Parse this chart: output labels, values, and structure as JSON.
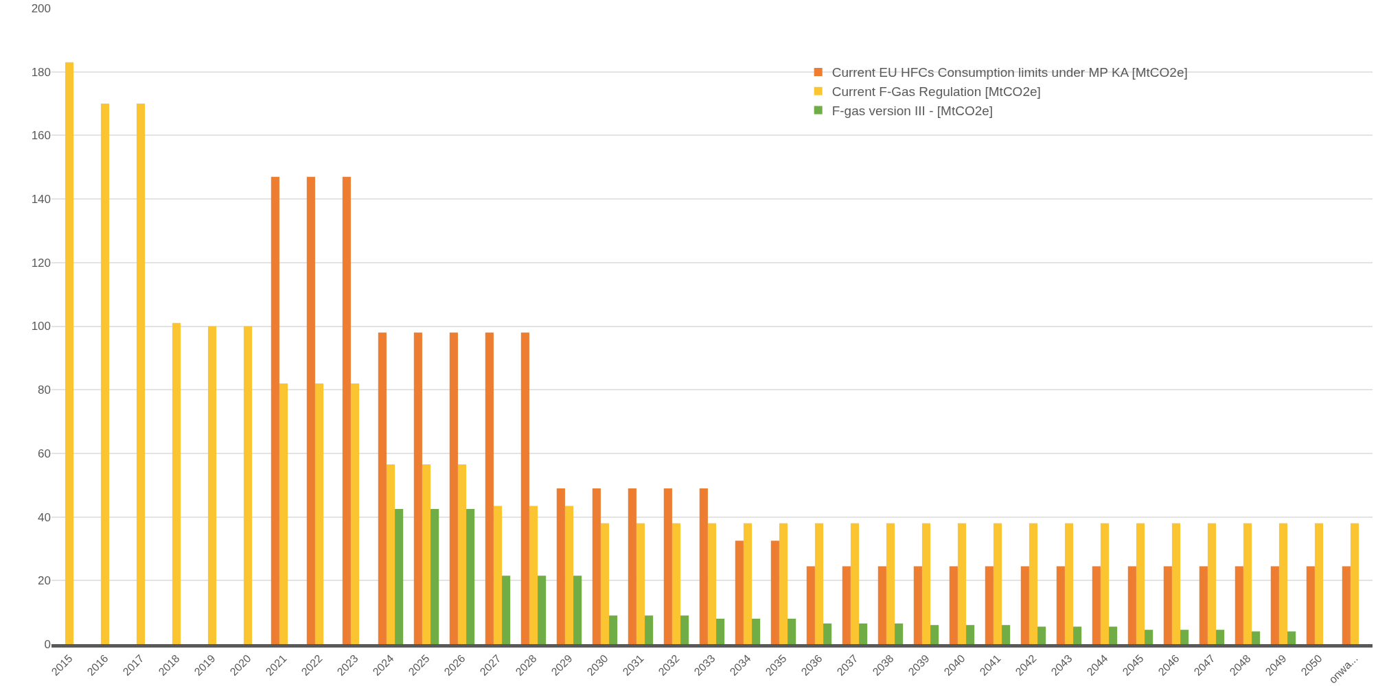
{
  "chart_data": {
    "type": "bar",
    "categories": [
      "2015",
      "2016",
      "2017",
      "2018",
      "2019",
      "2020",
      "2021",
      "2022",
      "2023",
      "2024",
      "2025",
      "2026",
      "2027",
      "2028",
      "2029",
      "2030",
      "2031",
      "2032",
      "2033",
      "2034",
      "2035",
      "2036",
      "2037",
      "2038",
      "2039",
      "2040",
      "2041",
      "2042",
      "2043",
      "2044",
      "2045",
      "2046",
      "2047",
      "2048",
      "2049",
      "2050",
      "onwa..."
    ],
    "series": [
      {
        "name": "Current EU HFCs Consumption limits under MP KA [MtCO2e]",
        "color": "#ed7d31",
        "values": [
          null,
          null,
          null,
          null,
          null,
          null,
          147,
          147,
          147,
          98,
          98,
          98,
          98,
          98,
          49,
          49,
          49,
          49,
          49,
          32.5,
          32.5,
          24.5,
          24.5,
          24.5,
          24.5,
          24.5,
          24.5,
          24.5,
          24.5,
          24.5,
          24.5,
          24.5,
          24.5,
          24.5,
          24.5,
          24.5,
          24.5
        ]
      },
      {
        "name": "Current F-Gas Regulation [MtCO2e]",
        "color": "#fbc531",
        "values": [
          183,
          170,
          170,
          101,
          100,
          100,
          82,
          82,
          82,
          56.5,
          56.5,
          56.5,
          43.5,
          43.5,
          43.5,
          38,
          38,
          38,
          38,
          38,
          38,
          38,
          38,
          38,
          38,
          38,
          38,
          38,
          38,
          38,
          38,
          38,
          38,
          38,
          38,
          38,
          38
        ]
      },
      {
        "name": "F-gas version III - [MtCO2e]",
        "color": "#70ad47",
        "values": [
          null,
          null,
          null,
          null,
          null,
          null,
          null,
          null,
          null,
          42.5,
          42.5,
          42.5,
          21.5,
          21.5,
          21.5,
          9,
          9,
          9,
          8,
          8,
          8,
          6.5,
          6.5,
          6.5,
          6,
          6,
          6,
          5.5,
          5.5,
          5.5,
          4.5,
          4.5,
          4.5,
          4,
          4,
          null,
          null
        ]
      }
    ],
    "ylim": [
      0,
      200
    ],
    "yticks": [
      0,
      20,
      40,
      60,
      80,
      100,
      120,
      140,
      160,
      180,
      200
    ],
    "grid": "y",
    "legend": "top right"
  }
}
